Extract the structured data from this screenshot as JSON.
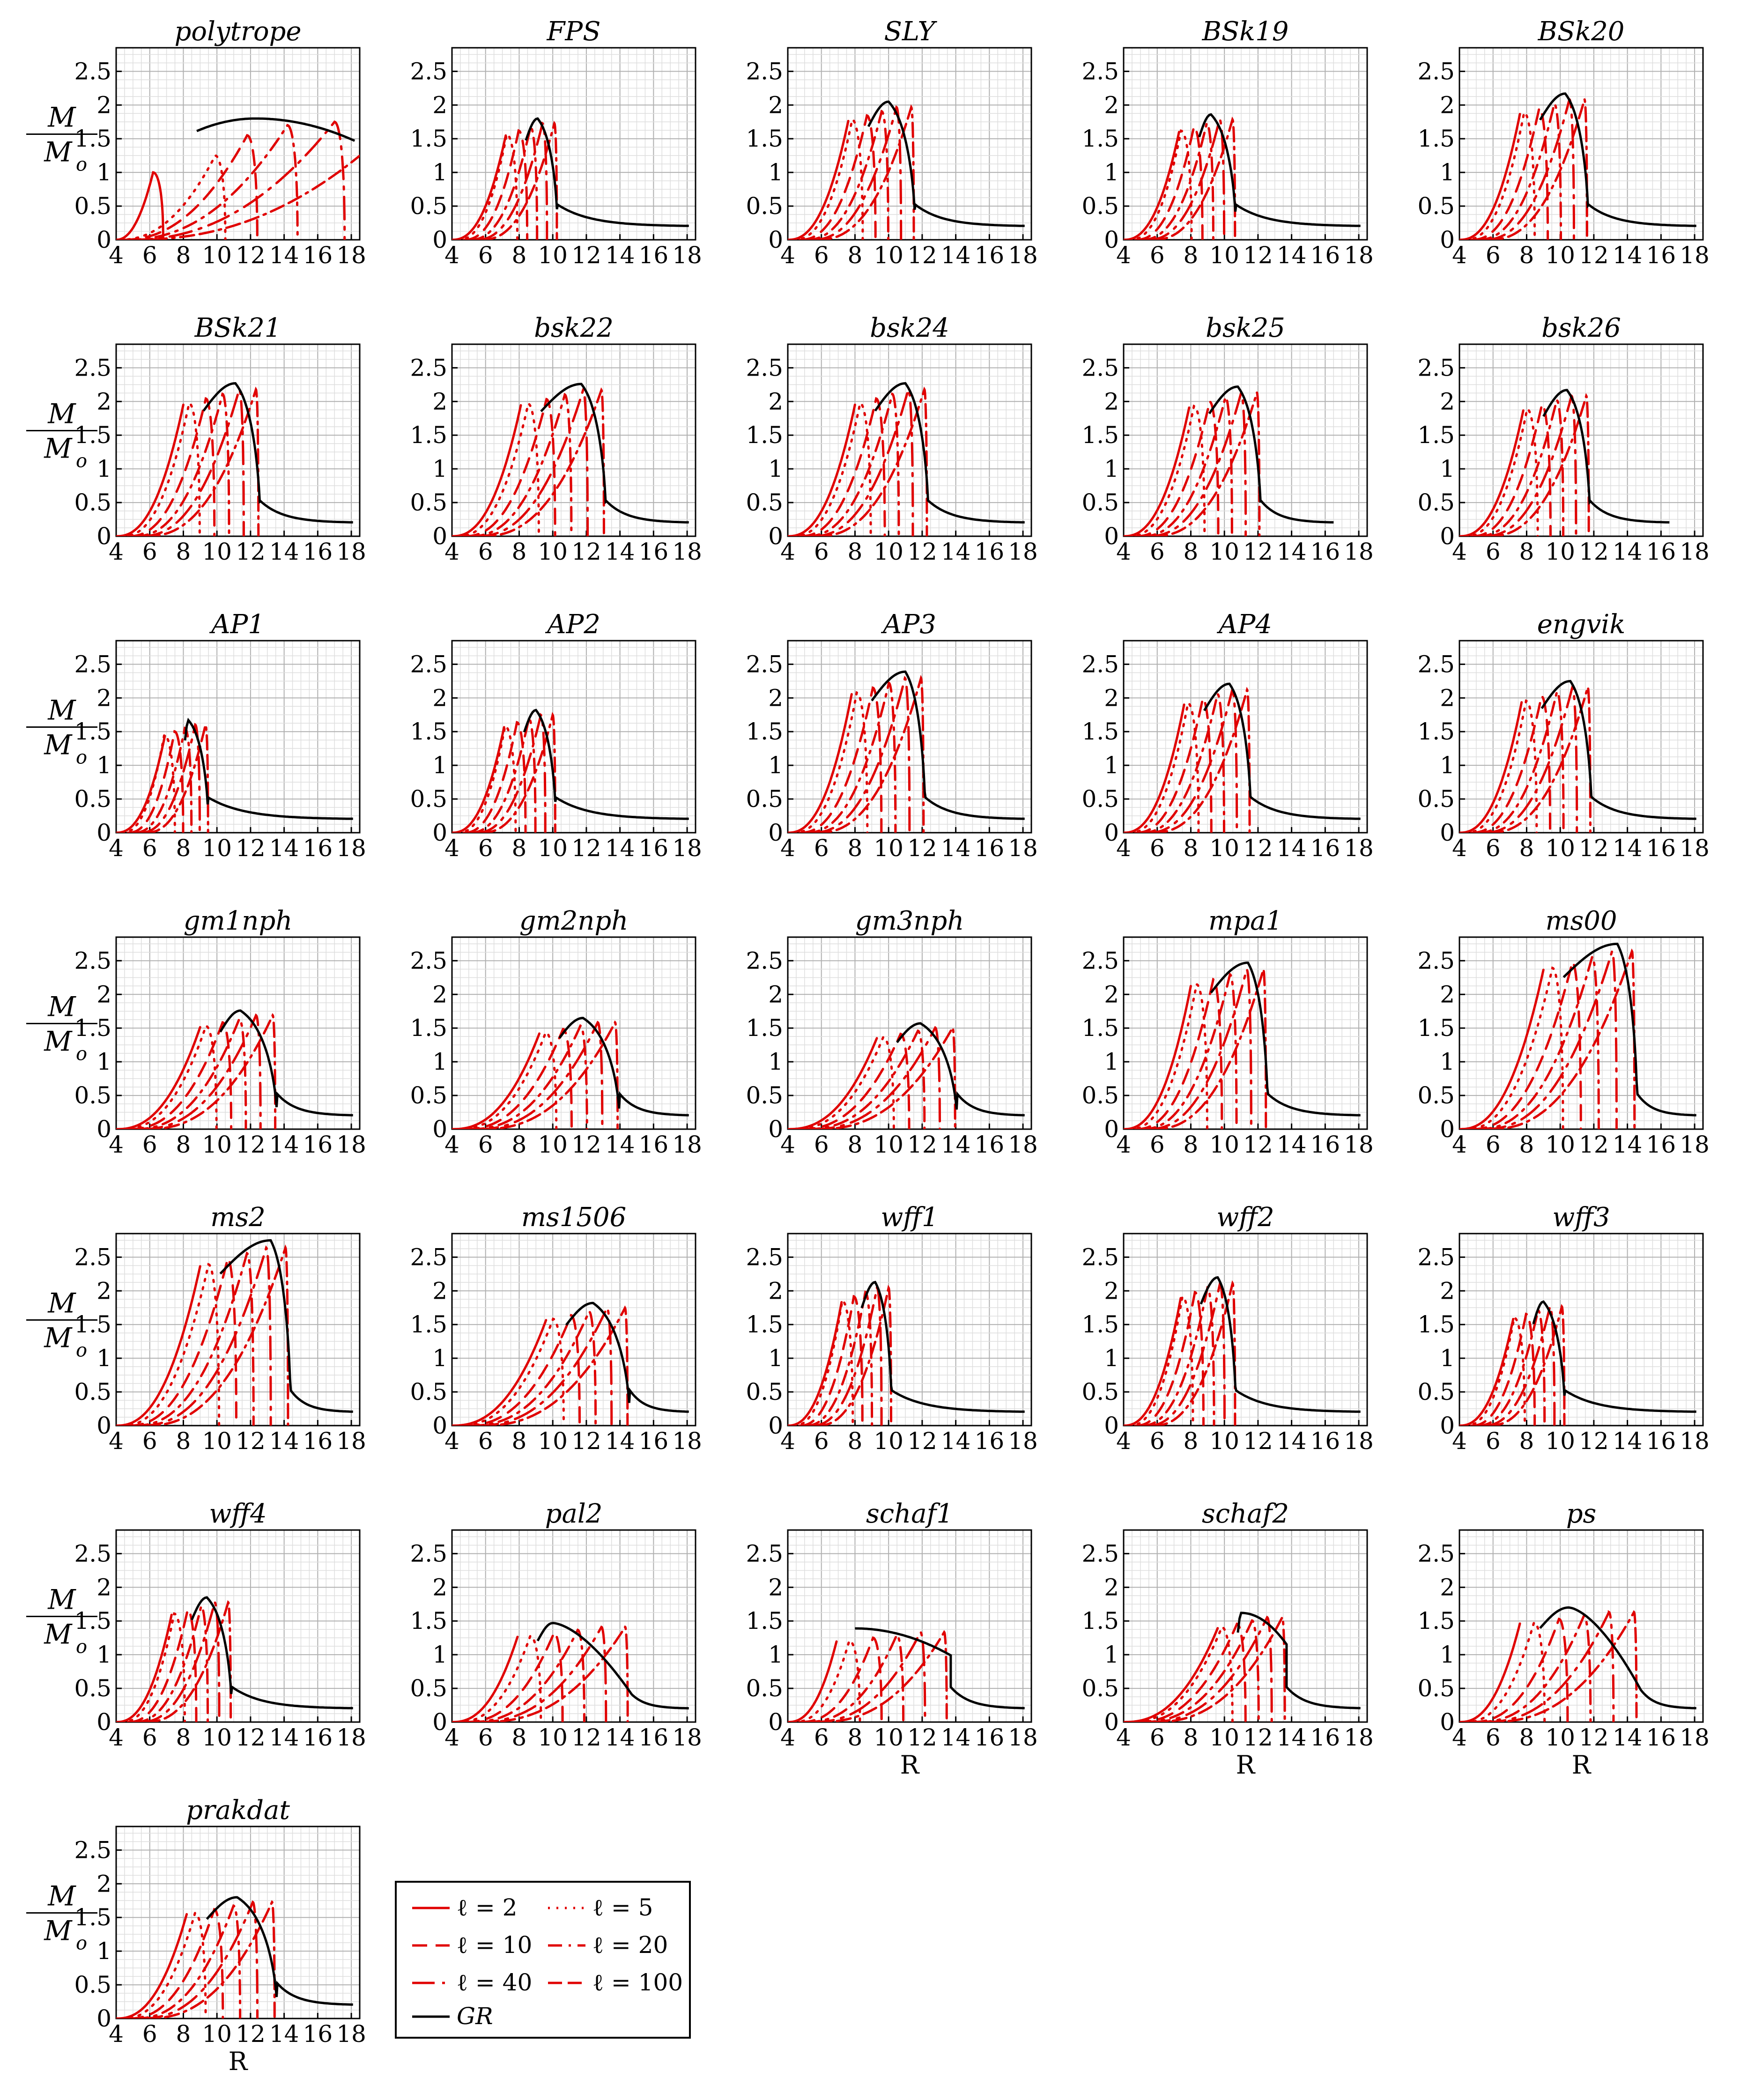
{
  "figure": {
    "y_axis_label": {
      "numerator": "M",
      "denominator": "M",
      "subscript": "o"
    },
    "x_axis_label": "R",
    "legend": {
      "entries": [
        {
          "label": "ℓ = 2",
          "dash": "solid",
          "color": "#e00000"
        },
        {
          "label": "ℓ = 5",
          "dash": "dot",
          "color": "#e00000"
        },
        {
          "label": "ℓ = 10",
          "dash": "dash",
          "color": "#e00000"
        },
        {
          "label": "ℓ = 20",
          "dash": "dashdot",
          "color": "#e00000"
        },
        {
          "label": "ℓ = 40",
          "dash": "longdashdot",
          "color": "#e00000"
        },
        {
          "label": "ℓ = 100",
          "dash": "dashdashdot",
          "color": "#e00000"
        },
        {
          "label": "GR",
          "dash": "solid",
          "color": "#000000",
          "italic": true
        }
      ]
    }
  },
  "chart_data": {
    "type": "line",
    "description_free": true,
    "x_range": [
      4,
      18.5
    ],
    "y_range": [
      0,
      2.85
    ],
    "x_ticks": [
      "4",
      "6",
      "8",
      "10",
      "12",
      "14",
      "16",
      "18"
    ],
    "y_ticks": [
      "0",
      "0.5",
      "1",
      "1.5",
      "2",
      "2.5"
    ],
    "l_values": [
      2,
      5,
      10,
      20,
      40,
      100
    ],
    "colors": {
      "l": "#e00000",
      "gr": "#000000"
    },
    "panels": [
      {
        "title": "polytrope",
        "gr_peak": [
          12.3,
          1.8
        ],
        "tail_r": 18.2,
        "mode": "arch"
      },
      {
        "title": "FPS",
        "gr_peak": [
          9.1,
          1.8
        ],
        "drop_r": 10.3,
        "base_r": 7.2,
        "tail_r": 18.2
      },
      {
        "title": "SLY",
        "gr_peak": [
          10.0,
          2.05
        ],
        "drop_r": 11.6,
        "base_r": 7.6,
        "tail_r": 18.2
      },
      {
        "title": "BSk19",
        "gr_peak": [
          9.2,
          1.86
        ],
        "drop_r": 10.7,
        "base_r": 7.3,
        "tail_r": 18.2
      },
      {
        "title": "BSk20",
        "gr_peak": [
          10.3,
          2.17
        ],
        "drop_r": 11.7,
        "base_r": 7.6,
        "tail_r": 18.2
      },
      {
        "title": "BSk21",
        "gr_peak": [
          11.1,
          2.27
        ],
        "drop_r": 12.6,
        "base_r": 8.0,
        "tail_r": 18.2
      },
      {
        "title": "bsk22",
        "gr_peak": [
          11.7,
          2.26
        ],
        "drop_r": 13.2,
        "base_r": 8.1,
        "tail_r": 18.2
      },
      {
        "title": "bsk24",
        "gr_peak": [
          11.0,
          2.27
        ],
        "drop_r": 12.4,
        "base_r": 8.0,
        "tail_r": 18.2
      },
      {
        "title": "bsk25",
        "gr_peak": [
          10.8,
          2.22
        ],
        "drop_r": 12.2,
        "base_r": 7.9,
        "tail_r": 16.5
      },
      {
        "title": "bsk26",
        "gr_peak": [
          10.4,
          2.17
        ],
        "drop_r": 11.8,
        "base_r": 7.8,
        "tail_r": 16.5
      },
      {
        "title": "AP1",
        "gr_peak": [
          8.3,
          1.67
        ],
        "drop_r": 9.5,
        "base_r": 6.9,
        "tail_r": 18.2
      },
      {
        "title": "AP2",
        "gr_peak": [
          9.0,
          1.82
        ],
        "drop_r": 10.2,
        "base_r": 7.1,
        "tail_r": 18.2
      },
      {
        "title": "AP3",
        "gr_peak": [
          11.0,
          2.39
        ],
        "drop_r": 12.2,
        "base_r": 7.8,
        "tail_r": 18.2
      },
      {
        "title": "AP4",
        "gr_peak": [
          10.3,
          2.21
        ],
        "drop_r": 11.6,
        "base_r": 7.6,
        "tail_r": 18.2
      },
      {
        "title": "engvik",
        "gr_peak": [
          10.6,
          2.25
        ],
        "drop_r": 11.9,
        "base_r": 7.7,
        "tail_r": 18.2
      },
      {
        "title": "gm1nph",
        "gr_peak": [
          11.4,
          1.76
        ],
        "drop_r": 13.6,
        "base_r": 9.0,
        "tail_r": 18.2
      },
      {
        "title": "gm2nph",
        "gr_peak": [
          11.8,
          1.65
        ],
        "drop_r": 14.0,
        "base_r": 9.2,
        "tail_r": 18.2
      },
      {
        "title": "gm3nph",
        "gr_peak": [
          11.9,
          1.57
        ],
        "drop_r": 14.1,
        "base_r": 9.3,
        "tail_r": 18.2
      },
      {
        "title": "mpa1",
        "gr_peak": [
          11.4,
          2.47
        ],
        "drop_r": 12.6,
        "base_r": 8.0,
        "tail_r": 18.2
      },
      {
        "title": "ms00",
        "gr_peak": [
          13.4,
          2.75
        ],
        "drop_r": 14.6,
        "base_r": 9.0,
        "tail_r": 18.2
      },
      {
        "title": "ms2",
        "gr_peak": [
          13.2,
          2.75
        ],
        "drop_r": 14.4,
        "base_r": 9.0,
        "tail_r": 18.2
      },
      {
        "title": "ms1506",
        "gr_peak": [
          12.4,
          1.82
        ],
        "drop_r": 14.6,
        "base_r": 9.6,
        "tail_r": 18.2
      },
      {
        "title": "wff1",
        "gr_peak": [
          9.2,
          2.13
        ],
        "drop_r": 10.2,
        "base_r": 7.2,
        "tail_r": 18.2
      },
      {
        "title": "wff2",
        "gr_peak": [
          9.6,
          2.2
        ],
        "drop_r": 10.7,
        "base_r": 7.4,
        "tail_r": 18.2
      },
      {
        "title": "wff3",
        "gr_peak": [
          9.0,
          1.84
        ],
        "drop_r": 10.3,
        "base_r": 7.2,
        "tail_r": 18.2
      },
      {
        "title": "wff4",
        "gr_peak": [
          9.4,
          1.85
        ],
        "drop_r": 10.9,
        "base_r": 7.3,
        "tail_r": 18.2
      },
      {
        "title": "pal2",
        "gr_peak": [
          10.0,
          1.47
        ],
        "drop_r": 14.7,
        "base_r": 7.9,
        "tail_r": 18.2,
        "mode": "arch"
      },
      {
        "title": "schaf1",
        "gr_peak": [
          8.0,
          1.39
        ],
        "drop_r": 13.7,
        "base_r": 6.9,
        "tail_r": 18.2,
        "mode": "plateau"
      },
      {
        "title": "schaf2",
        "gr_peak": [
          11.0,
          1.62
        ],
        "drop_r": 13.7,
        "base_r": 9.6,
        "tail_r": 18.2,
        "mode": "plateau"
      },
      {
        "title": "ps",
        "gr_peak": [
          10.5,
          1.7
        ],
        "drop_r": 14.8,
        "base_r": 7.6,
        "tail_r": 18.2,
        "mode": "arch"
      },
      {
        "title": "prakdat",
        "gr_peak": [
          11.2,
          1.8
        ],
        "drop_r": 13.6,
        "base_r": 8.2,
        "tail_r": 18.2
      }
    ]
  }
}
